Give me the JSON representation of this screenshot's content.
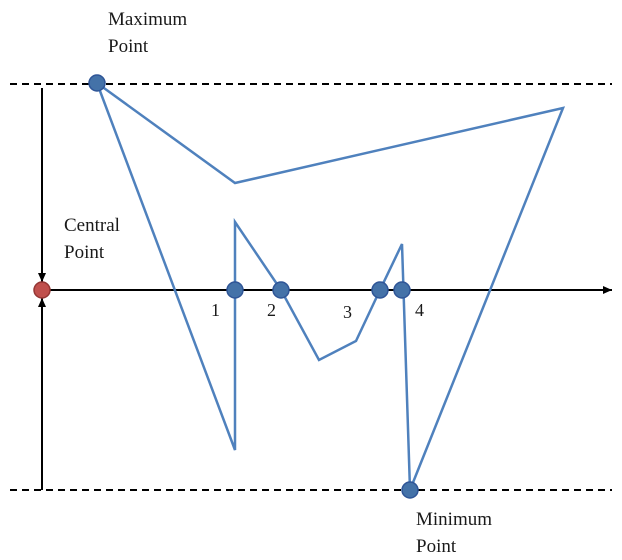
{
  "labels": {
    "maximum": [
      "Maximum",
      "Point"
    ],
    "central": [
      "Central",
      "Point"
    ],
    "minimum": [
      "Minimum",
      "Point"
    ]
  },
  "crossing_numbers": [
    "1",
    "2",
    "3",
    "4"
  ],
  "colors": {
    "signal_line": "#4f81bd",
    "marker_fill": "#4472a8",
    "marker_stroke": "#2f5597",
    "central_fill": "#c0504d",
    "central_stroke": "#943634",
    "axis": "#000000"
  }
}
